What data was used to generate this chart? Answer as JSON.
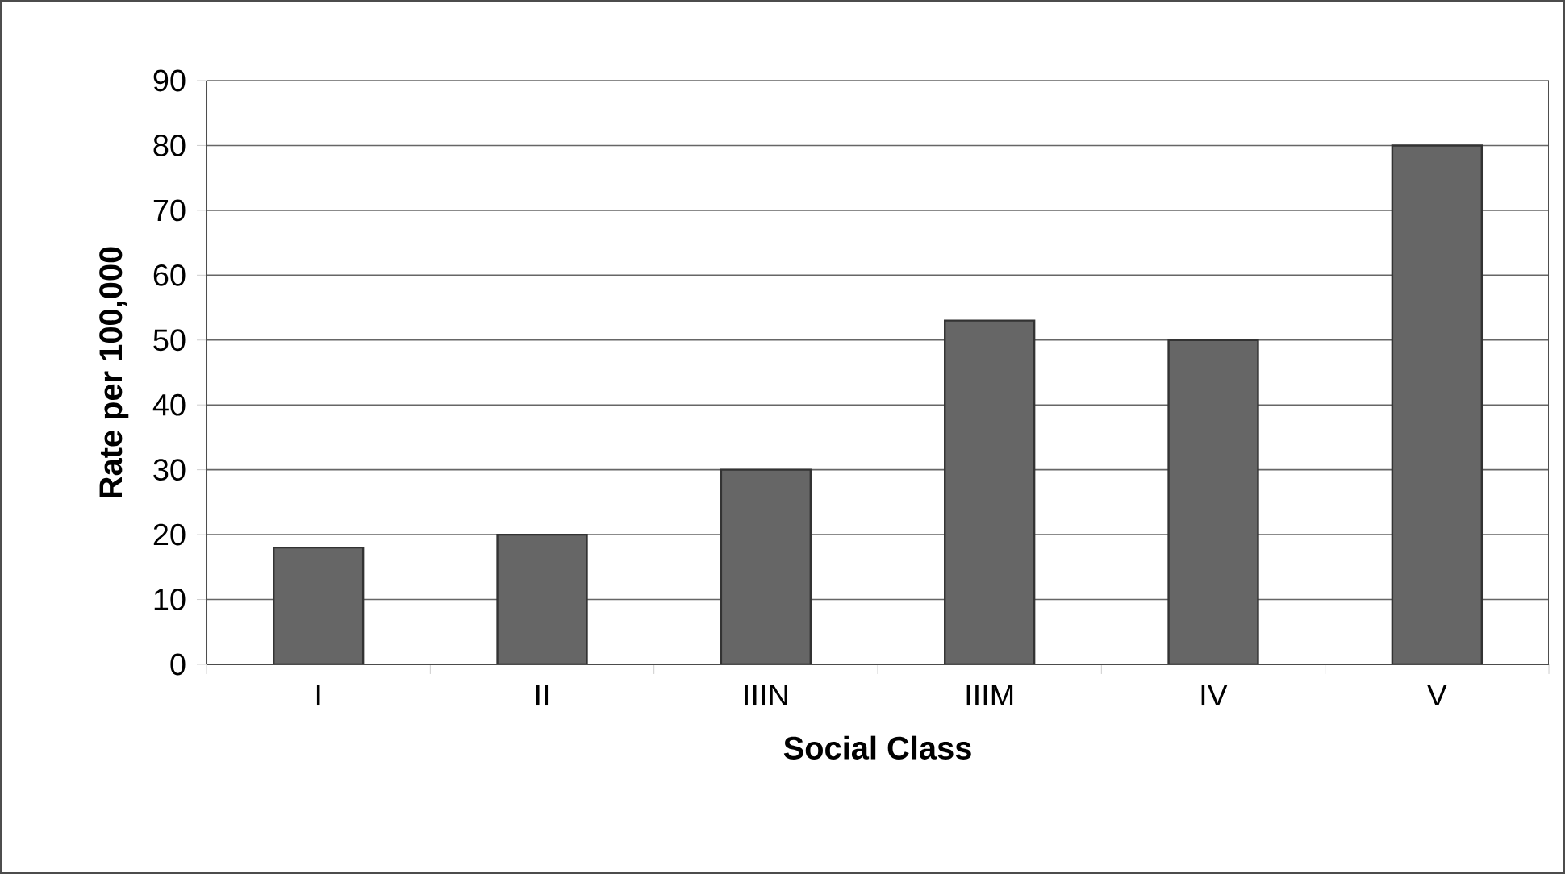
{
  "chart_data": {
    "type": "bar",
    "xlabel": "Social Class",
    "ylabel": "Rate per 100,000",
    "categories": [
      "I",
      "II",
      "IIIN",
      "IIIM",
      "IV",
      "V"
    ],
    "values": [
      18,
      20,
      30,
      53,
      50,
      80
    ],
    "color": "#666666",
    "ylim": [
      0,
      90
    ],
    "yticks": [
      0,
      10,
      20,
      30,
      40,
      50,
      60,
      70,
      80,
      90
    ],
    "grid": "y"
  }
}
